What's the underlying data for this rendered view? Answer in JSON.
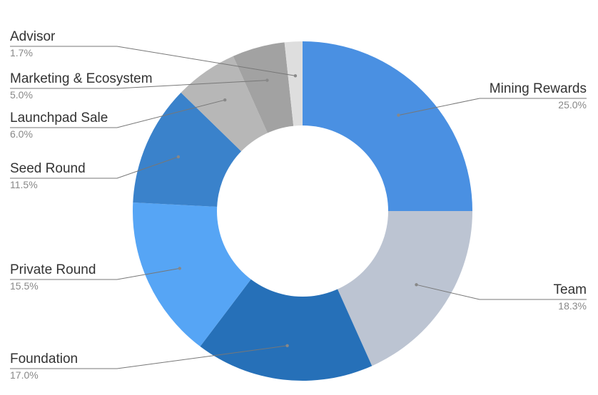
{
  "chart_data": {
    "type": "pie",
    "donut": true,
    "title": "",
    "legend": "none",
    "start_angle_deg": 0,
    "direction": "clockwise",
    "slices": [
      {
        "label": "Mining Rewards",
        "value": 25.0,
        "pct_label": "25.0%",
        "color": "#4a90e2",
        "label_side": "right"
      },
      {
        "label": "Team",
        "value": 18.3,
        "pct_label": "18.3%",
        "color": "#bcc4d2",
        "label_side": "right"
      },
      {
        "label": "Foundation",
        "value": 17.0,
        "pct_label": "17.0%",
        "color": "#2670b8",
        "label_side": "left"
      },
      {
        "label": "Private Round",
        "value": 15.5,
        "pct_label": "15.5%",
        "color": "#56a5f5",
        "label_side": "left"
      },
      {
        "label": "Seed Round",
        "value": 11.5,
        "pct_label": "11.5%",
        "color": "#3a82cb",
        "label_side": "left"
      },
      {
        "label": "Launchpad Sale",
        "value": 6.0,
        "pct_label": "6.0%",
        "color": "#b7b7b7",
        "label_side": "left"
      },
      {
        "label": "Marketing & Ecosystem",
        "value": 5.0,
        "pct_label": "5.0%",
        "color": "#a2a2a2",
        "label_side": "left"
      },
      {
        "label": "Advisor",
        "value": 1.7,
        "pct_label": "1.7%",
        "color": "#dedede",
        "label_side": "left"
      }
    ]
  }
}
